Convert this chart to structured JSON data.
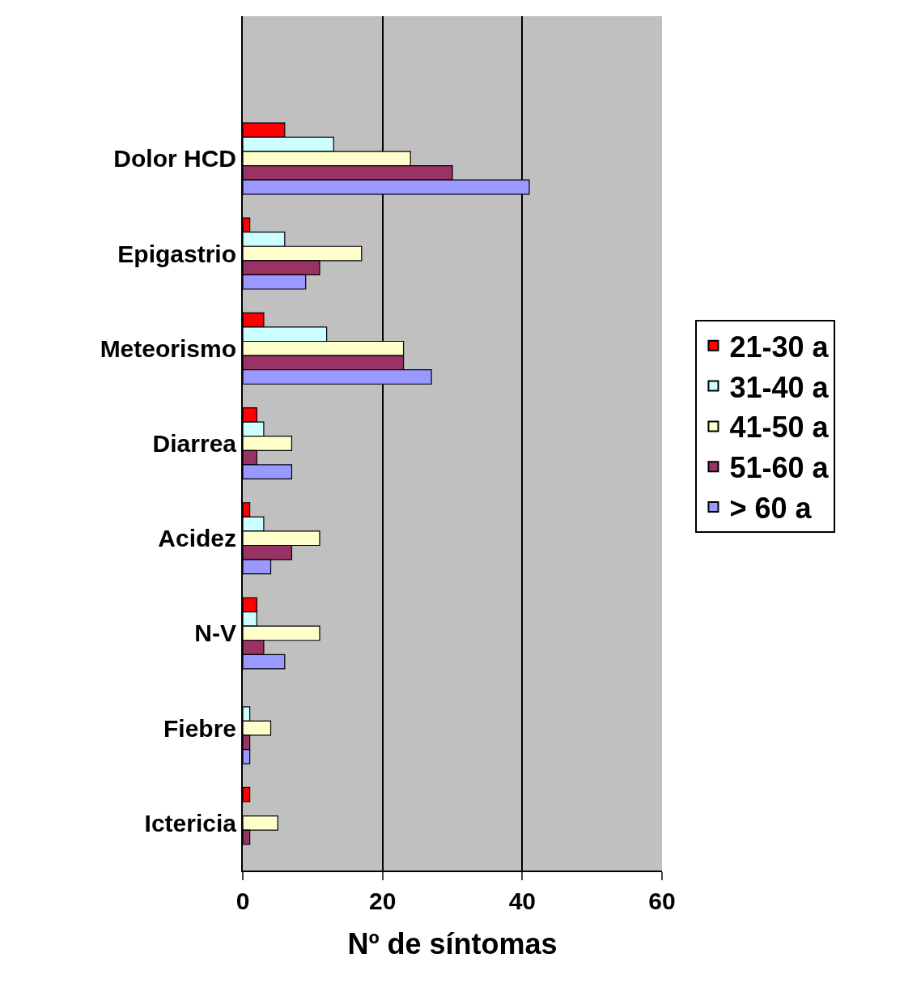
{
  "chart_data": {
    "type": "bar",
    "orientation": "horizontal",
    "xlabel": "Nº de síntomas",
    "categories": [
      null,
      "Dolor HCD",
      "Epigastrio",
      "Meteorismo",
      "Diarrea",
      "Acidez",
      "N-V",
      "Fiebre",
      "Ictericia"
    ],
    "series": [
      {
        "name": "21-30 a",
        "color": "#ff0000",
        "values": [
          null,
          6,
          1,
          3,
          2,
          1,
          2,
          null,
          1
        ]
      },
      {
        "name": "31-40 a",
        "color": "#ccffff",
        "values": [
          null,
          13,
          6,
          12,
          3,
          3,
          2,
          1,
          null
        ]
      },
      {
        "name": "41-50 a",
        "color": "#ffffcc",
        "values": [
          null,
          24,
          17,
          23,
          7,
          11,
          11,
          4,
          5
        ]
      },
      {
        "name": "51-60 a",
        "color": "#993366",
        "values": [
          null,
          30,
          11,
          23,
          2,
          7,
          3,
          1,
          1
        ]
      },
      {
        "name": "> 60 a",
        "color": "#9999ff",
        "values": [
          null,
          41,
          9,
          27,
          7,
          4,
          6,
          1,
          null
        ]
      }
    ],
    "xlim": [
      0,
      60
    ],
    "xticks": [
      0,
      20,
      40,
      60
    ],
    "grid": "x",
    "legend": "right"
  }
}
